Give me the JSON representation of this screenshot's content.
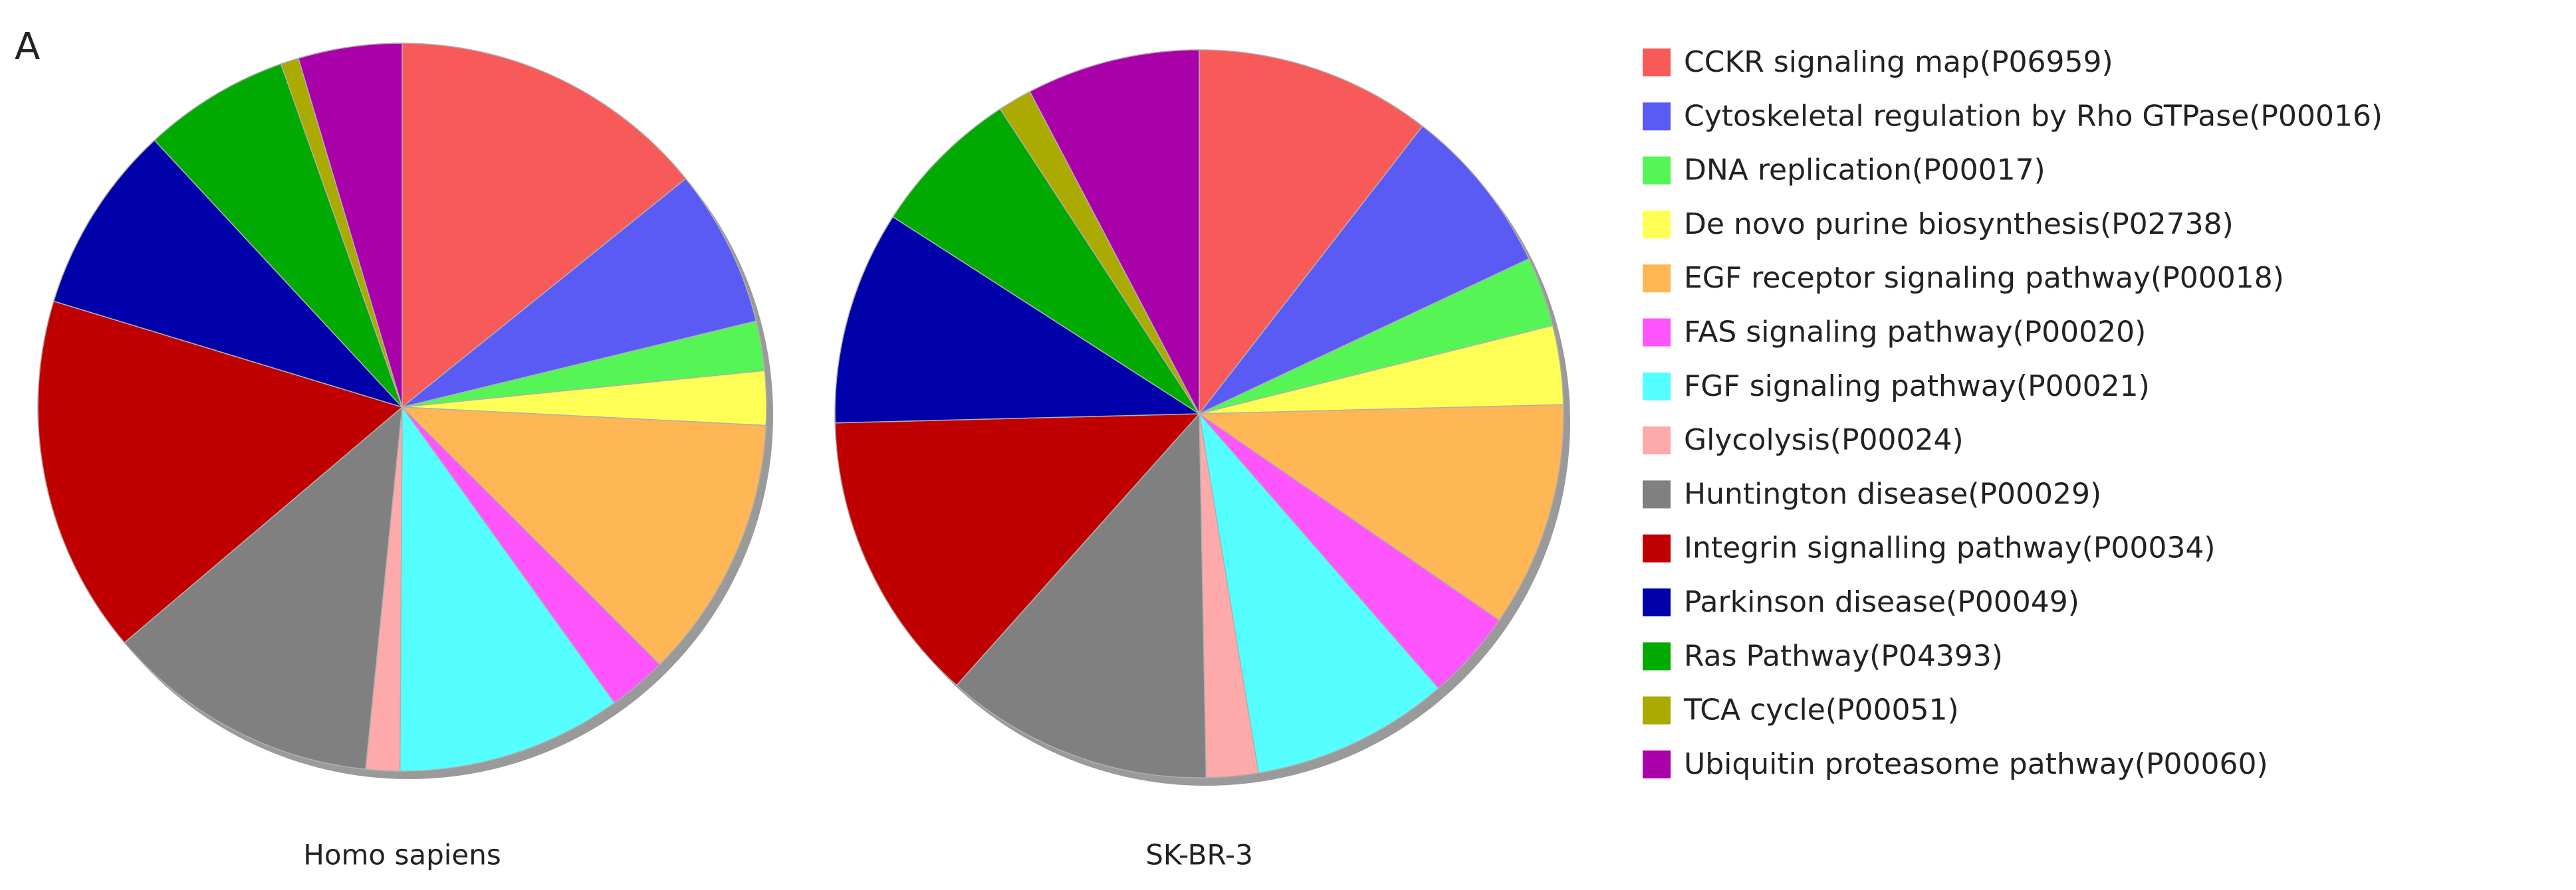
{
  "panel_label": "A",
  "chart_data": [
    {
      "type": "pie",
      "title": "Homo sapiens",
      "categories": [
        "CCKR signaling map(P06959)",
        "Cytoskeletal regulation by Rho GTPase(P00016)",
        "DNA replication(P00017)",
        "De novo purine biosynthesis(P02738)",
        "EGF receptor signaling pathway(P00018)",
        "FAS signaling pathway(P00020)",
        "FGF signaling pathway(P00021)",
        "Glycolysis(P00024)",
        "Huntington disease(P00029)",
        "Integrin signalling pathway(P00034)",
        "Parkinson disease(P00049)",
        "Ras Pathway(P04393)",
        "TCA cycle(P00051)",
        "Ubiquitin proteasome pathway(P00060)"
      ],
      "colors": [
        "#f85a5a",
        "#5a5af5",
        "#55f555",
        "#ffff55",
        "#ffb655",
        "#ff55ff",
        "#55ffff",
        "#ffaaaa",
        "#808080",
        "#c00000",
        "#0000aa",
        "#00aa00",
        "#aaaa00",
        "#aa00aa"
      ],
      "values": [
        14.2,
        7,
        2.2,
        2.4,
        11.7,
        2.6,
        10,
        1.5,
        12.2,
        15.9,
        8.4,
        6.5,
        0.8,
        4.6
      ]
    },
    {
      "type": "pie",
      "title": "SK-BR-3",
      "values": [
        10.5,
        7.5,
        3.1,
        3.5,
        10,
        4,
        8.8,
        2.3,
        11.9,
        13,
        9.5,
        6.7,
        1.5,
        7.7
      ]
    }
  ]
}
